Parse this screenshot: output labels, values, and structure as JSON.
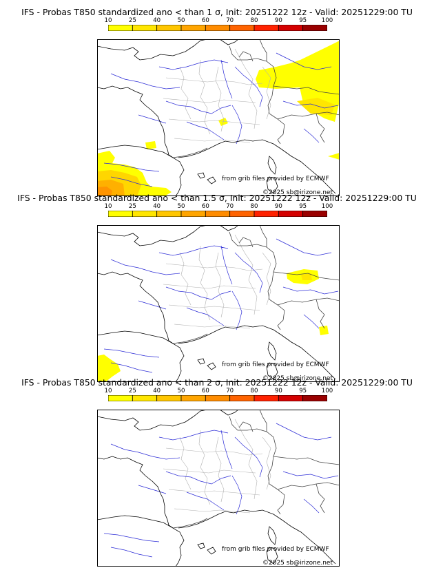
{
  "colorbar": {
    "ticks": [
      "10",
      "25",
      "40",
      "50",
      "60",
      "70",
      "80",
      "90",
      "95",
      "100"
    ],
    "colors": [
      "#ffff00",
      "#ffe600",
      "#ffc600",
      "#ffa500",
      "#ff8c00",
      "#ff6300",
      "#ff2200",
      "#d40000",
      "#9a0000",
      "#5a0000"
    ]
  },
  "panels": [
    {
      "title": "IFS - Probas T850  standardized ano < than 1 σ, Init: 20251222 12z - Valid: 20251229:00 TU",
      "credit": "from grib files provided by ECMWF",
      "copyright": "©2025 sb@irizone.net"
    },
    {
      "title": "IFS - Probas T850  standardized ano < than 1.5 σ, Init: 20251222 12z - Valid: 20251229:00 TU",
      "credit": "from grib files provided by ECMWF",
      "copyright": "©2025 sb@irizone.net"
    },
    {
      "title": "IFS - Probas T850  standardized ano < than 2 σ, Init: 20251222 12z - Valid: 20251229:00 TU",
      "credit": "from grib files provided by ECMWF",
      "copyright": "©2025 sb@irizone.net"
    }
  ]
}
